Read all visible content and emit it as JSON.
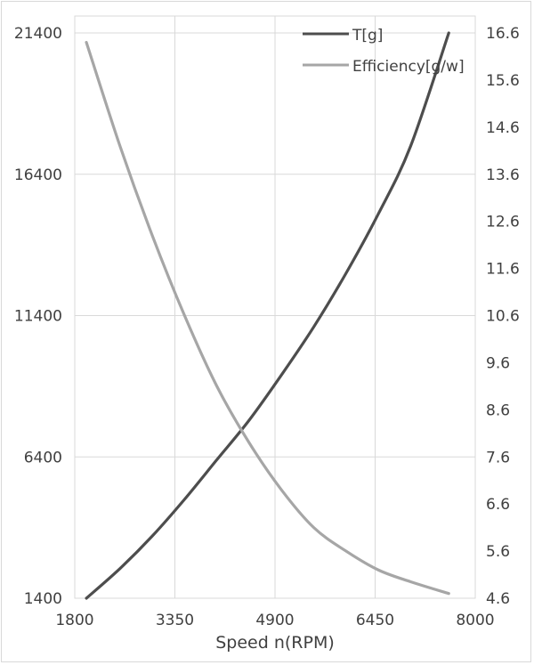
{
  "chart_data": {
    "type": "line",
    "title": "",
    "xlabel": "Speed n(RPM)",
    "ylabel_left": "",
    "ylabel_right": "",
    "x_ticks": [
      "1800",
      "3350",
      "4900",
      "6450",
      "8000"
    ],
    "y_left_ticks": [
      "1400",
      "6400",
      "11400",
      "16400",
      "21400"
    ],
    "y_right_ticks": [
      "4.6",
      "5.6",
      "6.6",
      "7.6",
      "8.6",
      "9.6",
      "10.6",
      "11.6",
      "12.6",
      "13.6",
      "14.6",
      "15.6",
      "16.6"
    ],
    "xlim": [
      1800,
      8000
    ],
    "ylim_left": [
      1400,
      21400
    ],
    "ylim_right": [
      4.6,
      16.6
    ],
    "grid": true,
    "legend_position": "top-right",
    "series": [
      {
        "name": "T[g]",
        "axis": "left",
        "color": "#4d4d4d",
        "x": [
          1980,
          2500,
          3000,
          3500,
          4000,
          4500,
          5000,
          5500,
          6000,
          6500,
          7000,
          7590
        ],
        "values": [
          1400,
          2450,
          3600,
          4900,
          6300,
          7700,
          9300,
          11000,
          12900,
          15000,
          17400,
          21400
        ]
      },
      {
        "name": "Efficiency[g/w]",
        "axis": "right",
        "color": "#a6a6a6",
        "x": [
          1980,
          2500,
          3000,
          3500,
          4000,
          4500,
          5000,
          5500,
          6000,
          6500,
          7000,
          7590
        ],
        "values": [
          16.4,
          14.2,
          12.3,
          10.6,
          9.1,
          7.9,
          6.9,
          6.1,
          5.6,
          5.2,
          4.95,
          4.7
        ]
      }
    ]
  },
  "legend": {
    "items": [
      {
        "label": "T[g]",
        "color": "#4d4d4d"
      },
      {
        "label": "Efficiency[g/w]",
        "color": "#a6a6a6"
      }
    ]
  }
}
